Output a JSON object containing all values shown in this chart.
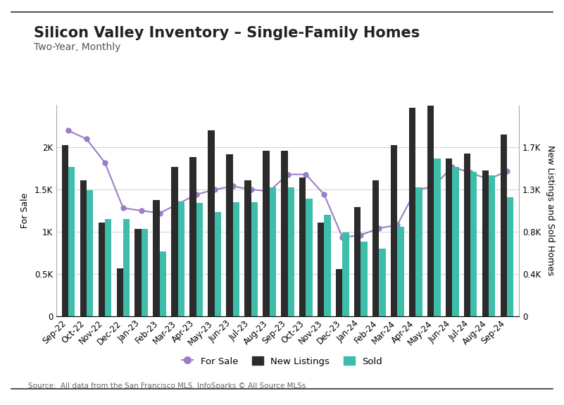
{
  "title": "Silicon Valley Inventory – Single-Family Homes",
  "subtitle": "Two-Year, Monthly",
  "source": "Source:  All data from the San Francisco MLS. InfoSparks © All Source MLSs",
  "categories": [
    "Sep-22",
    "Oct-22",
    "Nov-22",
    "Dec-22",
    "Jan-23",
    "Feb-23",
    "Mar-23",
    "Apr-23",
    "May-23",
    "Jun-23",
    "Jul-23",
    "Aug-23",
    "Sep-23",
    "Oct-23",
    "Nov-23",
    "Dec-23",
    "Jan-24",
    "Feb-24",
    "Mar-24",
    "Apr-24",
    "May-24",
    "Jun-24",
    "Jul-24",
    "Aug-24",
    "Sep-24"
  ],
  "new_listings": [
    1720,
    1370,
    940,
    480,
    880,
    1170,
    1500,
    1600,
    1870,
    1630,
    1370,
    1670,
    1670,
    1400,
    940,
    470,
    1100,
    1370,
    1720,
    2100,
    2300,
    1590,
    1640,
    1470,
    1830
  ],
  "sold": [
    1500,
    1270,
    980,
    980,
    880,
    650,
    1150,
    1140,
    1050,
    1150,
    1150,
    1300,
    1300,
    1180,
    1020,
    840,
    750,
    680,
    900,
    1300,
    1590,
    1500,
    1450,
    1420,
    1200
  ],
  "for_sale": [
    2200,
    2100,
    1820,
    1280,
    1250,
    1220,
    1330,
    1440,
    1500,
    1540,
    1500,
    1480,
    1680,
    1680,
    1440,
    930,
    960,
    1040,
    1080,
    1490,
    1540,
    1770,
    1700,
    1620,
    1720
  ],
  "bar_color_new": "#2b2b2b",
  "bar_color_sold": "#3dbdaa",
  "line_color": "#9b7ec8",
  "background_color": "#ffffff",
  "left_ylim": [
    0,
    2500
  ],
  "left_yticks": [
    0,
    500,
    1000,
    1500,
    2000
  ],
  "left_yticklabels": [
    "0",
    "0.5K",
    "1K",
    "1.5K",
    "2K"
  ],
  "right_ylim": [
    0,
    2125
  ],
  "right_yticks": [
    0,
    425,
    850,
    1275,
    1700
  ],
  "right_yticklabels": [
    "0",
    "0.4K",
    "0.8K",
    "1.3K",
    "1.7K"
  ],
  "ylabel_left": "For Sale",
  "ylabel_right": "New Listings and Sold Homes",
  "legend_labels": [
    "For Sale",
    "New Listings",
    "Sold"
  ],
  "title_fontsize": 15,
  "subtitle_fontsize": 10,
  "axis_label_fontsize": 9,
  "tick_fontsize": 8.5,
  "legend_fontsize": 9.5,
  "source_fontsize": 7.5
}
